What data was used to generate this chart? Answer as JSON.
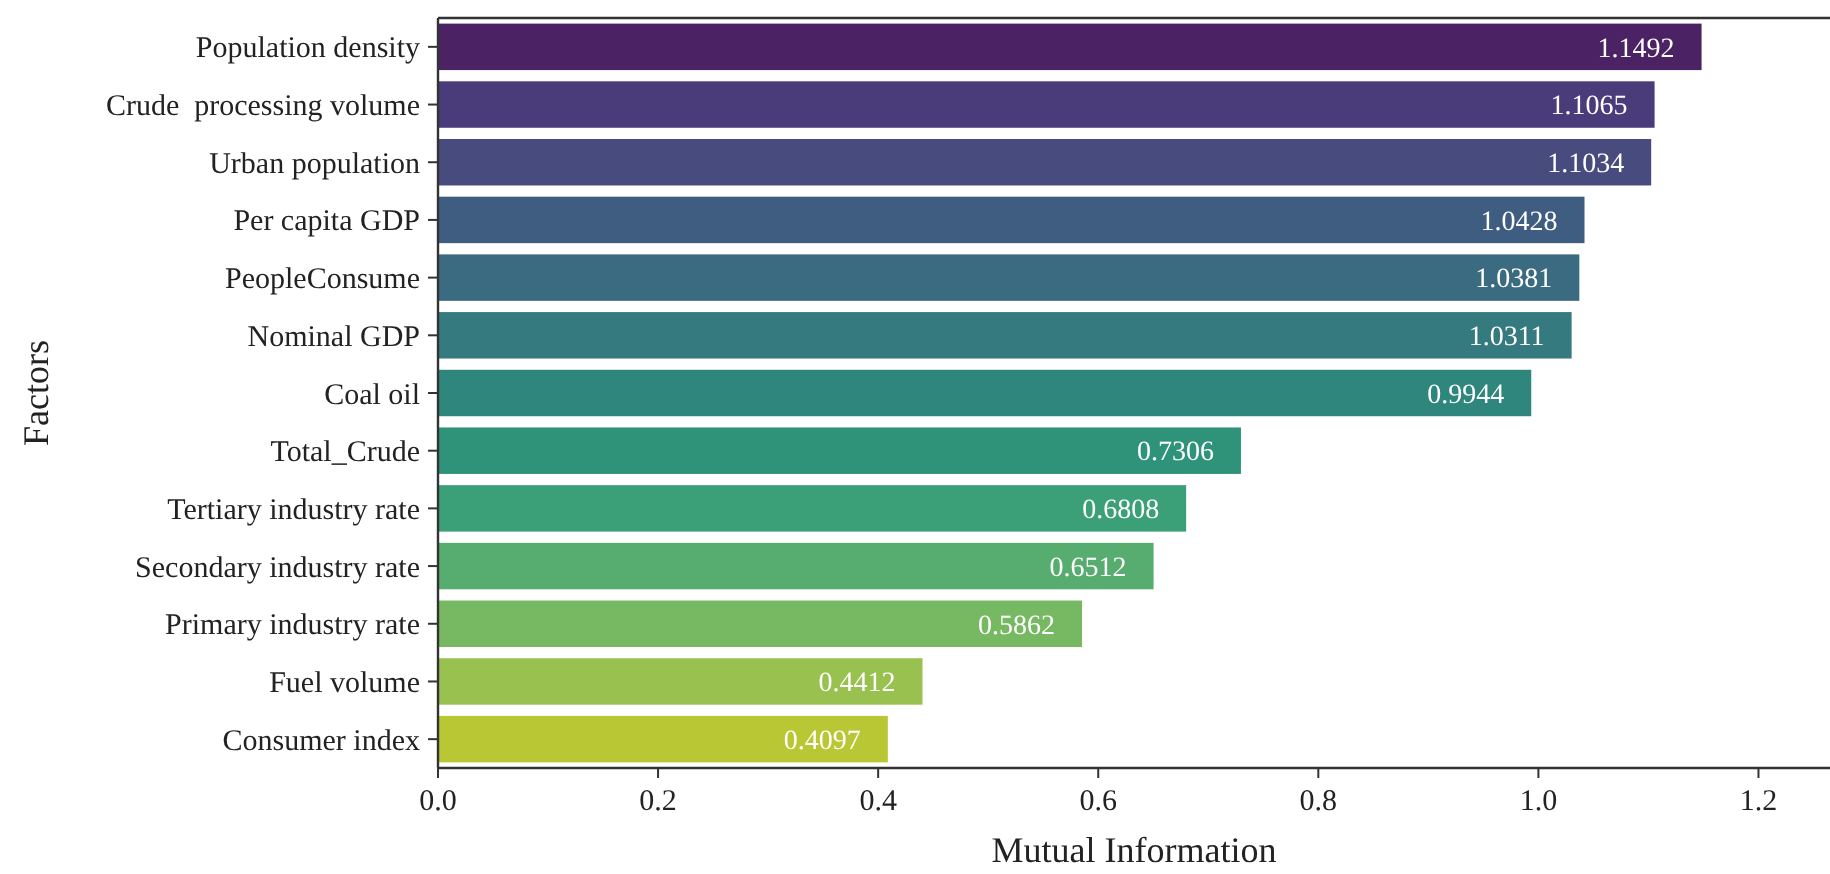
{
  "chart_data": {
    "type": "bar",
    "orientation": "horizontal",
    "xlabel": "Mutual Information",
    "ylabel": "Factors",
    "categories": [
      "Population density",
      "Crude  processing volume",
      "Urban population",
      "Per capita GDP",
      "PeopleConsume",
      "Nominal GDP",
      "Coal oil",
      "Total_Crude",
      "Tertiary industry rate",
      "Secondary industry rate",
      "Primary industry rate",
      "Fuel volume",
      "Consumer index"
    ],
    "values": [
      1.1492,
      1.1065,
      1.1034,
      1.0428,
      1.0381,
      1.0311,
      0.9944,
      0.7306,
      0.6808,
      0.6512,
      0.5862,
      0.4412,
      0.4097
    ],
    "colors": [
      "#4b2364",
      "#4a3b7a",
      "#474b7e",
      "#3f5d81",
      "#3a6b80",
      "#357a7f",
      "#2f867d",
      "#2f937a",
      "#3ba078",
      "#57ad70",
      "#76b962",
      "#99c150",
      "#bac735"
    ],
    "xlim": [
      0,
      1.265
    ],
    "xticks": [
      {
        "value": 0,
        "label": "0.0"
      },
      {
        "value": 0.2,
        "label": "0.2"
      },
      {
        "value": 0.4,
        "label": "0.4"
      },
      {
        "value": 0.6,
        "label": "0.6"
      },
      {
        "value": 0.8,
        "label": "0.8"
      },
      {
        "value": 1,
        "label": "1.0"
      },
      {
        "value": 1.2,
        "label": "1.2"
      }
    ],
    "data_labels": true,
    "grid": false
  }
}
